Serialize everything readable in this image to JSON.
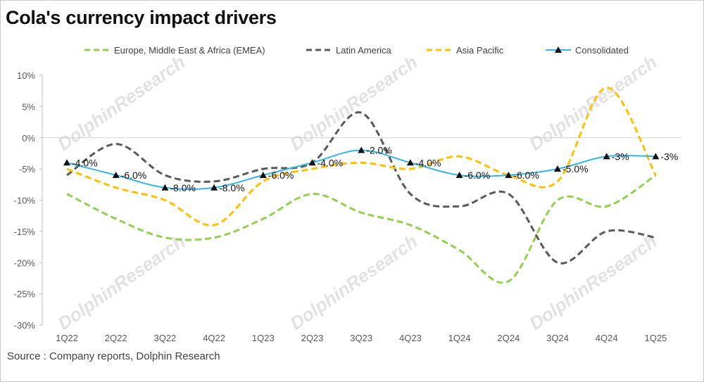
{
  "title": "Cola's currency impact drivers",
  "source": "Source : Company reports, Dolphin Research",
  "watermark": "DolphinResearch",
  "chart_data": {
    "type": "line",
    "title": "Cola's currency impact drivers",
    "xlabel": "",
    "ylabel": "",
    "categories": [
      "1Q22",
      "2Q22",
      "3Q22",
      "4Q22",
      "1Q23",
      "2Q23",
      "3Q23",
      "4Q23",
      "1Q24",
      "2Q24",
      "3Q24",
      "4Q24",
      "1Q25"
    ],
    "ylim": [
      -30,
      10
    ],
    "yticks": [
      10,
      5,
      0,
      -5,
      -10,
      -15,
      -20,
      -25,
      -30
    ],
    "ytick_labels": [
      "10%",
      "5%",
      "0%",
      "-5%",
      "-10%",
      "-15%",
      "-20%",
      "-25%",
      "-30%"
    ],
    "grid": false,
    "legend_position": "top",
    "series": [
      {
        "name": "Europe, Middle East & Africa (EMEA)",
        "color": "#92d050",
        "style": "dashed",
        "values": [
          -9,
          -13,
          -16,
          -16,
          -13,
          -9,
          -12,
          -14,
          -18,
          -23,
          -10,
          -11,
          -6
        ]
      },
      {
        "name": "Latin America",
        "color": "#595959",
        "style": "dashed",
        "values": [
          -6,
          -1,
          -6,
          -7,
          -5,
          -4,
          4,
          -9,
          -11,
          -9,
          -20,
          -15,
          -16
        ]
      },
      {
        "name": "Asia Pacific",
        "color": "#ffc000",
        "style": "dashed",
        "values": [
          -5,
          -8,
          -10,
          -14,
          -7,
          -5,
          -4,
          -5,
          -3,
          -6,
          -7,
          8,
          -6
        ]
      },
      {
        "name": "Consolidated",
        "color": "#33b5e5",
        "style": "solid-marker",
        "values": [
          -4,
          -6,
          -8,
          -8,
          -6,
          -4,
          -2,
          -4,
          -6,
          -6,
          -5,
          -3,
          -3
        ],
        "labels": [
          "-4.0%",
          "-6.0%",
          "-8.0%",
          "-8.0%",
          "-6.0%",
          "-4.0%",
          "-2.0%",
          "-4.0%",
          "-6.0%",
          "-6.0%",
          "-5.0%",
          "-3%",
          "-3%"
        ]
      }
    ]
  }
}
